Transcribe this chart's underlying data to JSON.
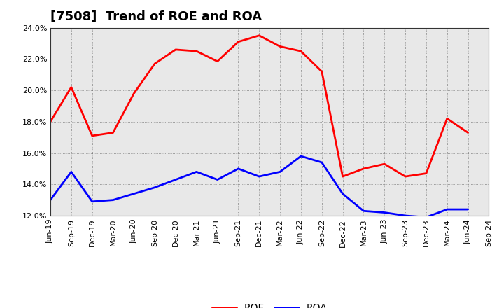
{
  "title": "[7508]  Trend of ROE and ROA",
  "x_labels": [
    "Jun-19",
    "Sep-19",
    "Dec-19",
    "Mar-20",
    "Jun-20",
    "Sep-20",
    "Dec-20",
    "Mar-21",
    "Jun-21",
    "Sep-21",
    "Dec-21",
    "Mar-22",
    "Jun-22",
    "Sep-22",
    "Dec-22",
    "Mar-23",
    "Jun-23",
    "Sep-23",
    "Dec-23",
    "Mar-24",
    "Jun-24",
    "Sep-24"
  ],
  "roe": [
    18.0,
    20.2,
    17.1,
    17.3,
    19.8,
    21.7,
    22.6,
    22.5,
    21.85,
    23.1,
    23.5,
    22.8,
    22.5,
    21.2,
    14.5,
    15.0,
    15.3,
    14.5,
    14.7,
    18.2,
    17.3,
    null
  ],
  "roa": [
    13.0,
    14.8,
    12.9,
    13.0,
    13.4,
    13.8,
    14.3,
    14.8,
    14.3,
    15.0,
    14.5,
    14.8,
    15.8,
    15.4,
    13.4,
    12.3,
    12.2,
    12.0,
    11.9,
    12.4,
    12.4,
    null
  ],
  "ylim": [
    12.0,
    24.0
  ],
  "yticks": [
    12.0,
    14.0,
    16.0,
    18.0,
    20.0,
    22.0,
    24.0
  ],
  "roe_color": "#ff0000",
  "roa_color": "#0000ff",
  "background_color": "#ffffff",
  "plot_bg_color": "#e8e8e8",
  "grid_color": "#555555",
  "title_fontsize": 13,
  "tick_fontsize": 8,
  "legend_fontsize": 10
}
